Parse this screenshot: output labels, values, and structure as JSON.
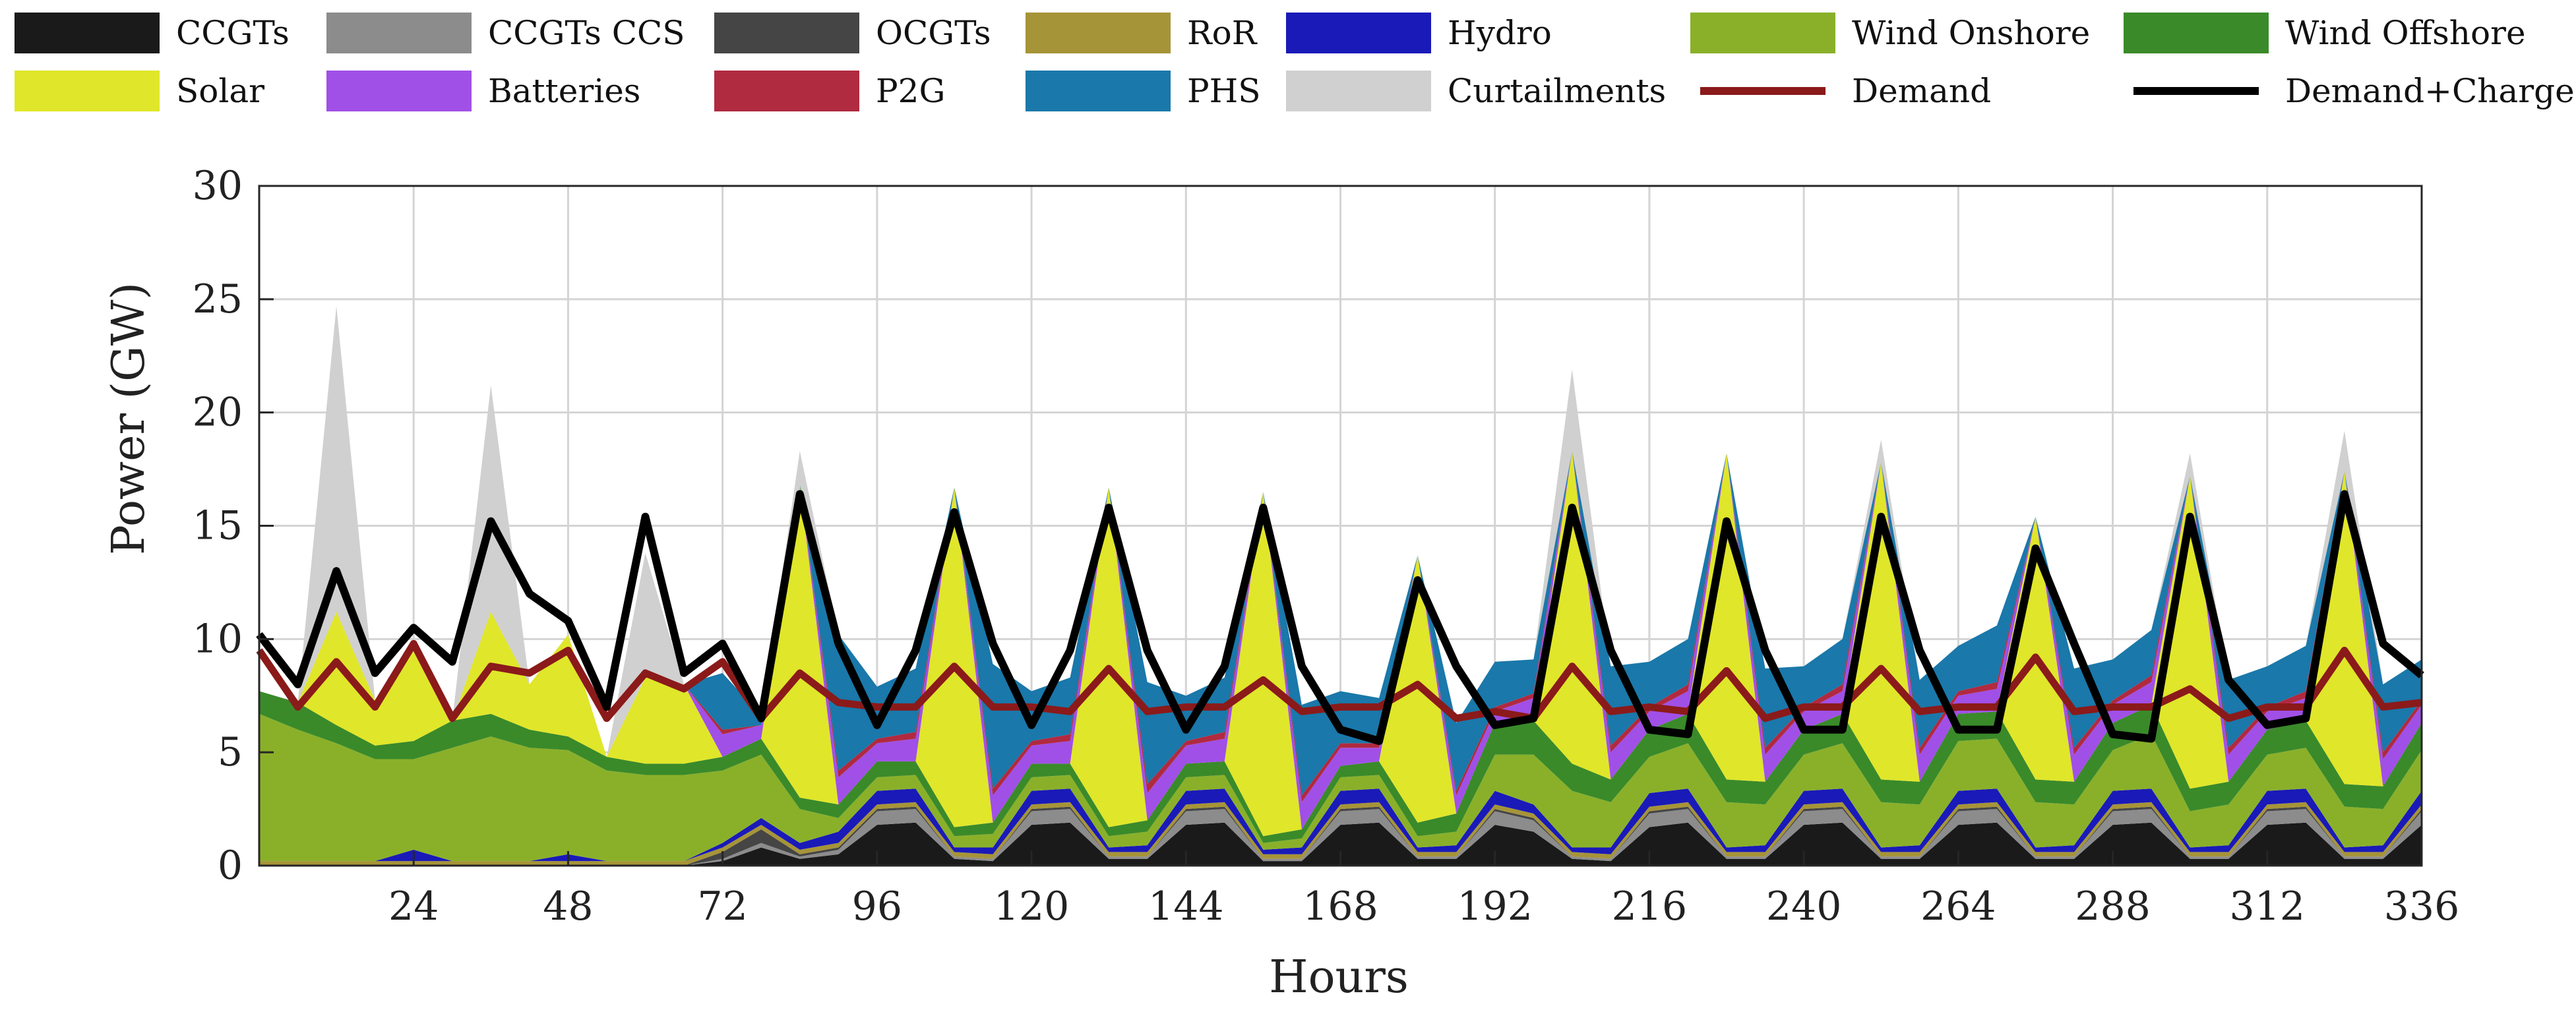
{
  "chart_data": {
    "type": "area",
    "title": "",
    "xlabel": "Hours",
    "ylabel": "Power (GW)",
    "xlim": [
      0,
      336
    ],
    "ylim": [
      0,
      30
    ],
    "xticks": [
      24,
      48,
      72,
      96,
      120,
      144,
      168,
      192,
      216,
      240,
      264,
      288,
      312,
      336
    ],
    "xtick_labels": [
      "24",
      "48",
      "72",
      "96",
      "120",
      "144",
      "168",
      "192",
      "216",
      "240",
      "264",
      "288",
      "312",
      "336"
    ],
    "yticks": [
      0,
      5,
      10,
      15,
      20,
      25,
      30
    ],
    "ytick_labels": [
      "0",
      "5",
      "10",
      "15",
      "20",
      "25",
      "30"
    ],
    "grid": true,
    "legend_position": "top",
    "legend": [
      {
        "name": "CCGTs",
        "color": "#1a1a1a",
        "kind": "area"
      },
      {
        "name": "CCGTs CCS",
        "color": "#8c8c8c",
        "kind": "area"
      },
      {
        "name": "OCGTs",
        "color": "#454545",
        "kind": "area"
      },
      {
        "name": "RoR",
        "color": "#a69438",
        "kind": "area"
      },
      {
        "name": "Hydro",
        "color": "#1a1ab8",
        "kind": "area"
      },
      {
        "name": "Wind Onshore",
        "color": "#8ab02a",
        "kind": "area"
      },
      {
        "name": "Wind Offshore",
        "color": "#3a8a2a",
        "kind": "area"
      },
      {
        "name": "Solar",
        "color": "#e0e62a",
        "kind": "area"
      },
      {
        "name": "Batteries",
        "color": "#a050e6",
        "kind": "area"
      },
      {
        "name": "P2G",
        "color": "#b02a40",
        "kind": "area"
      },
      {
        "name": "PHS",
        "color": "#1a78aa",
        "kind": "area"
      },
      {
        "name": "Curtailments",
        "color": "#d0d0d0",
        "kind": "area"
      },
      {
        "name": "Demand",
        "color": "#8b1a1a",
        "kind": "line"
      },
      {
        "name": "Demand+Charge",
        "color": "#000000",
        "kind": "line"
      }
    ],
    "hours": [
      0,
      6,
      12,
      18,
      24,
      30,
      36,
      42,
      48,
      54,
      60,
      66,
      72,
      78,
      84,
      90,
      96,
      102,
      108,
      114,
      120,
      126,
      132,
      138,
      144,
      150,
      156,
      162,
      168,
      174,
      180,
      186,
      192,
      198,
      204,
      210,
      216,
      222,
      228,
      234,
      240,
      246,
      252,
      258,
      264,
      270,
      276,
      282,
      288,
      294,
      300,
      306,
      312,
      318,
      324,
      330,
      336
    ],
    "stack_order": [
      "CCGTs",
      "CCGTs CCS",
      "OCGTs",
      "RoR",
      "Hydro",
      "Wind Onshore",
      "Wind Offshore",
      "Solar",
      "Batteries",
      "P2G",
      "PHS"
    ],
    "series": [
      {
        "name": "CCGTs",
        "values": [
          0,
          0,
          0,
          0,
          0,
          0,
          0,
          0,
          0,
          0,
          0,
          0,
          0.2,
          0.8,
          0.3,
          0.5,
          1.8,
          1.9,
          0.3,
          0.2,
          1.8,
          1.9,
          0.3,
          0.3,
          1.8,
          1.9,
          0.2,
          0.2,
          1.8,
          1.9,
          0.3,
          0.3,
          1.8,
          1.5,
          0.3,
          0.2,
          1.7,
          1.9,
          0.3,
          0.3,
          1.8,
          1.9,
          0.3,
          0.3,
          1.8,
          1.9,
          0.3,
          0.3,
          1.8,
          1.9,
          0.3,
          0.3,
          1.8,
          1.9,
          0.3,
          0.3,
          1.8
        ]
      },
      {
        "name": "CCGTs CCS",
        "values": [
          0,
          0,
          0,
          0,
          0,
          0,
          0,
          0,
          0,
          0,
          0,
          0,
          0.1,
          0.2,
          0.1,
          0.2,
          0.6,
          0.6,
          0.1,
          0.1,
          0.6,
          0.6,
          0.1,
          0.1,
          0.6,
          0.6,
          0.1,
          0.1,
          0.6,
          0.6,
          0.1,
          0.1,
          0.6,
          0.5,
          0.1,
          0.1,
          0.6,
          0.6,
          0.1,
          0.1,
          0.6,
          0.6,
          0.1,
          0.1,
          0.6,
          0.6,
          0.1,
          0.1,
          0.6,
          0.6,
          0.1,
          0.1,
          0.6,
          0.6,
          0.1,
          0.1,
          0.6
        ]
      },
      {
        "name": "OCGTs",
        "values": [
          0,
          0,
          0,
          0,
          0,
          0,
          0,
          0,
          0,
          0,
          0,
          0,
          0.3,
          0.6,
          0.1,
          0.1,
          0.1,
          0.1,
          0,
          0,
          0.1,
          0.1,
          0,
          0,
          0.1,
          0.1,
          0,
          0,
          0.1,
          0.1,
          0,
          0,
          0.1,
          0.1,
          0,
          0,
          0.1,
          0.1,
          0,
          0,
          0.1,
          0.1,
          0,
          0,
          0.1,
          0.1,
          0,
          0,
          0.1,
          0.1,
          0,
          0,
          0.1,
          0.1,
          0,
          0,
          0.1
        ]
      },
      {
        "name": "RoR",
        "values": [
          0.2,
          0.2,
          0.2,
          0.2,
          0.2,
          0.2,
          0.2,
          0.2,
          0.2,
          0.2,
          0.2,
          0.2,
          0.2,
          0.2,
          0.2,
          0.2,
          0.2,
          0.2,
          0.2,
          0.2,
          0.2,
          0.2,
          0.2,
          0.2,
          0.2,
          0.2,
          0.2,
          0.2,
          0.2,
          0.2,
          0.2,
          0.2,
          0.2,
          0.2,
          0.2,
          0.2,
          0.2,
          0.2,
          0.2,
          0.2,
          0.2,
          0.2,
          0.2,
          0.2,
          0.2,
          0.2,
          0.2,
          0.2,
          0.2,
          0.2,
          0.2,
          0.2,
          0.2,
          0.2,
          0.2,
          0.2,
          0.2
        ]
      },
      {
        "name": "Hydro",
        "values": [
          0,
          0,
          0,
          0,
          0.5,
          0,
          0,
          0,
          0.3,
          0,
          0,
          0,
          0.2,
          0.3,
          0.3,
          0.5,
          0.6,
          0.6,
          0.2,
          0.3,
          0.6,
          0.6,
          0.2,
          0.3,
          0.6,
          0.6,
          0.2,
          0.3,
          0.6,
          0.6,
          0.2,
          0.3,
          0.6,
          0.4,
          0.2,
          0.3,
          0.6,
          0.6,
          0.2,
          0.3,
          0.6,
          0.6,
          0.2,
          0.3,
          0.6,
          0.6,
          0.2,
          0.3,
          0.6,
          0.6,
          0.2,
          0.3,
          0.6,
          0.6,
          0.2,
          0.3,
          0.6
        ]
      },
      {
        "name": "Wind Onshore",
        "values": [
          6.5,
          5.8,
          5.2,
          4.5,
          4.0,
          5.0,
          5.5,
          5.0,
          4.6,
          4.0,
          3.8,
          3.8,
          3.2,
          2.8,
          1.5,
          0.6,
          0.6,
          0.6,
          0.5,
          0.6,
          0.6,
          0.6,
          0.5,
          0.6,
          0.6,
          0.6,
          0.3,
          0.4,
          0.6,
          0.6,
          0.5,
          0.6,
          1.6,
          2.2,
          2.5,
          2.0,
          1.6,
          2.0,
          2.0,
          1.8,
          1.6,
          2.0,
          2.0,
          1.8,
          2.2,
          2.2,
          2.0,
          1.8,
          1.8,
          2.4,
          1.6,
          1.8,
          1.6,
          1.8,
          1.8,
          1.6,
          1.8
        ]
      },
      {
        "name": "Wind Offshore",
        "values": [
          1.0,
          1.2,
          0.8,
          0.6,
          0.8,
          1.2,
          1.0,
          0.8,
          0.6,
          0.6,
          0.5,
          0.5,
          0.6,
          0.7,
          0.5,
          0.6,
          0.7,
          0.6,
          0.4,
          0.5,
          0.6,
          0.5,
          0.4,
          0.5,
          0.6,
          0.6,
          0.3,
          0.4,
          0.5,
          0.6,
          0.6,
          0.8,
          1.4,
          1.5,
          1.2,
          1.0,
          1.2,
          1.3,
          1.0,
          1.0,
          1.1,
          1.3,
          1.0,
          1.0,
          1.2,
          1.2,
          1.0,
          1.0,
          1.2,
          1.3,
          1.0,
          1.0,
          1.1,
          1.2,
          1.0,
          1.0,
          1.2
        ]
      },
      {
        "name": "Solar",
        "values": [
          0,
          0,
          5.0,
          2.0,
          4.5,
          0,
          4.5,
          2.0,
          4.5,
          0,
          3.8,
          3.5,
          0,
          0,
          13.8,
          0,
          0,
          0,
          15.0,
          0,
          0,
          0,
          15.0,
          0,
          0,
          0,
          15.2,
          0,
          0,
          0,
          11.8,
          0,
          0,
          0,
          13.8,
          0,
          0,
          0,
          14.4,
          0,
          0,
          0,
          14.0,
          0,
          0,
          0,
          11.6,
          0,
          0,
          0,
          13.8,
          0,
          0,
          0,
          13.8,
          0,
          0
        ]
      },
      {
        "name": "Batteries",
        "values": [
          0,
          0,
          0,
          0,
          0,
          0,
          0,
          0,
          0,
          0,
          0,
          0,
          1.0,
          0.6,
          0,
          1.2,
          0.8,
          1.0,
          0,
          1.2,
          0.8,
          1.0,
          0,
          1.2,
          0.8,
          1.0,
          0,
          1.2,
          0.8,
          0.6,
          0,
          0.8,
          0.5,
          1.0,
          0,
          1.2,
          0.8,
          1.0,
          0,
          1.2,
          0.8,
          1.0,
          0,
          1.2,
          0.8,
          1.0,
          0,
          1.2,
          0.8,
          1.0,
          0,
          1.2,
          0.8,
          1.0,
          0,
          1.2,
          0.8
        ]
      },
      {
        "name": "P2G",
        "values": [
          0,
          0,
          0,
          0,
          0,
          0,
          0,
          0,
          0,
          0,
          0,
          0,
          0.2,
          0,
          0,
          0.3,
          0.2,
          0.3,
          0,
          0.3,
          0.2,
          0.3,
          0,
          0.4,
          0.2,
          0.3,
          0,
          0.3,
          0.2,
          0.2,
          0,
          0.2,
          0.2,
          0.2,
          0,
          0.3,
          0.2,
          0.3,
          0,
          0.3,
          0.2,
          0.3,
          0,
          0.3,
          0.2,
          0.3,
          0,
          0.3,
          0.2,
          0.3,
          0,
          0.3,
          0.2,
          0.3,
          0,
          0.3,
          0.2
        ]
      },
      {
        "name": "PHS",
        "values": [
          0,
          0,
          0,
          0,
          0,
          0,
          0,
          0,
          0,
          0,
          0,
          0,
          2.5,
          0.4,
          0,
          6.0,
          2.3,
          2.8,
          0,
          5.5,
          2.2,
          2.5,
          0,
          4.5,
          2.0,
          2.4,
          0,
          4.0,
          2.3,
          2.0,
          0,
          3.0,
          2.0,
          1.5,
          0,
          3.5,
          2.0,
          2.0,
          0,
          3.5,
          1.8,
          2.0,
          0,
          3.0,
          2.0,
          2.5,
          0,
          3.5,
          1.8,
          2.0,
          0,
          3.0,
          1.8,
          2.0,
          0,
          3.0,
          1.8
        ]
      },
      {
        "name": "Curtailments",
        "values": [
          0,
          0,
          13.5,
          0,
          0,
          0,
          10.0,
          0,
          0,
          0,
          5.5,
          0,
          0,
          0,
          1.5,
          0,
          0,
          0,
          0,
          0,
          0,
          0,
          0,
          0,
          0,
          0,
          0,
          0,
          0,
          0,
          0,
          0,
          0,
          0,
          3.6,
          0,
          0,
          0,
          0,
          0,
          0,
          0,
          1.0,
          0,
          0,
          0,
          0,
          0,
          0,
          0,
          1.0,
          0,
          0,
          0,
          1.8,
          0,
          0
        ]
      },
      {
        "name": "Demand",
        "values": [
          9.5,
          7.0,
          9.0,
          7.0,
          9.8,
          6.5,
          8.8,
          8.5,
          9.5,
          6.5,
          8.5,
          7.8,
          9.0,
          6.5,
          8.5,
          7.2,
          7.0,
          7.0,
          8.8,
          7.0,
          7.0,
          6.8,
          8.7,
          6.8,
          7.0,
          7.0,
          8.2,
          6.8,
          7.0,
          7.0,
          8.0,
          6.5,
          6.8,
          6.5,
          8.8,
          6.8,
          7.0,
          6.8,
          8.6,
          6.5,
          7.0,
          7.0,
          8.7,
          6.8,
          7.0,
          7.0,
          9.2,
          6.8,
          7.0,
          7.0,
          7.8,
          6.5,
          7.0,
          7.0,
          9.5,
          7.0,
          7.2
        ]
      },
      {
        "name": "Demand+Charge",
        "values": [
          10.2,
          8.0,
          13.0,
          8.5,
          10.5,
          9.0,
          15.2,
          12.0,
          10.8,
          7.0,
          15.4,
          8.5,
          9.8,
          6.5,
          16.4,
          9.8,
          6.2,
          9.5,
          15.6,
          9.8,
          6.2,
          9.5,
          15.8,
          9.5,
          6.0,
          8.8,
          15.8,
          8.8,
          6.0,
          5.5,
          12.6,
          8.8,
          6.2,
          6.5,
          15.8,
          9.5,
          6.0,
          5.8,
          15.2,
          9.5,
          6.0,
          6.0,
          15.4,
          9.5,
          6.0,
          6.0,
          14.0,
          9.8,
          5.8,
          5.6,
          15.4,
          8.2,
          6.2,
          6.5,
          16.4,
          9.8,
          8.4
        ]
      }
    ]
  }
}
